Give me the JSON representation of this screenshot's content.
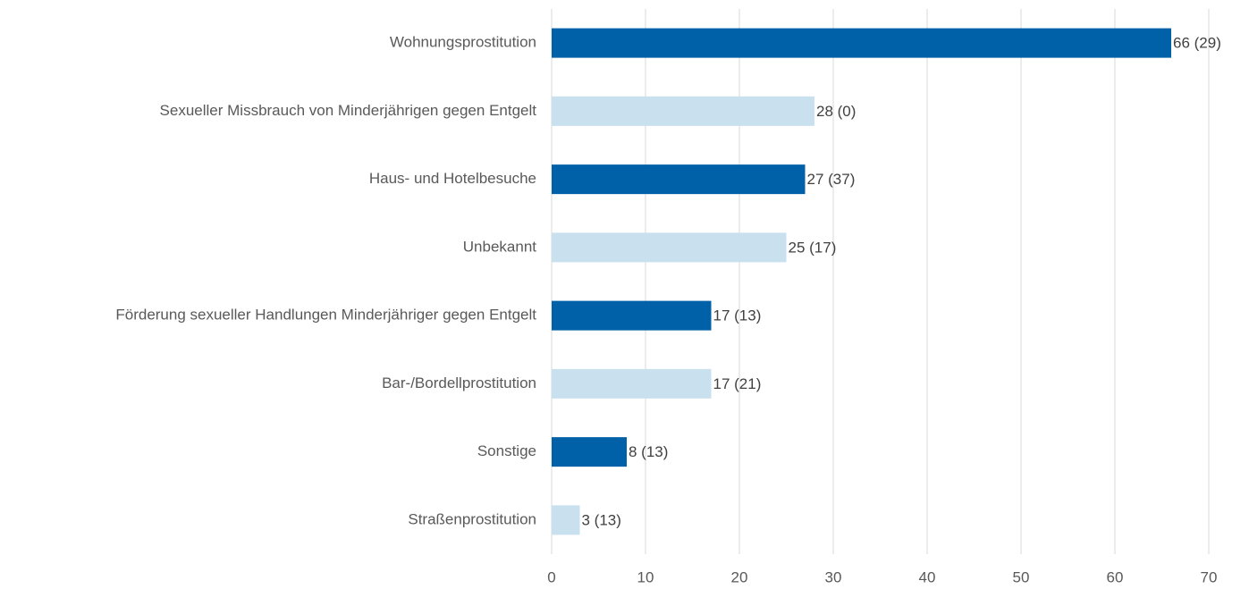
{
  "chart_data": {
    "type": "bar",
    "orientation": "horizontal",
    "categories": [
      "Wohnungsprostitution",
      "Sexueller Missbrauch von Minderjährigen gegen Entgelt",
      "Haus- und Hotelbesuche",
      "Unbekannt",
      "Förderung sexueller Handlungen Minderjähriger gegen Entgelt",
      "Bar-/Bordellprostitution",
      "Sonstige",
      "Straßenprostitution"
    ],
    "values": [
      66,
      28,
      27,
      25,
      17,
      17,
      8,
      3
    ],
    "value_labels": [
      "66 (29)",
      "28 (0)",
      "27 (37)",
      "25 (17)",
      "17 (13)",
      "17 (21)",
      "8 (13)",
      "3 (13)"
    ],
    "colors": [
      "#0060a8",
      "#c9e0ef",
      "#0060a8",
      "#c9e0ef",
      "#0060a8",
      "#c9e0ef",
      "#0060a8",
      "#c9e0ef"
    ],
    "xlim": [
      0,
      70
    ],
    "xticks": [
      0,
      10,
      20,
      30,
      40,
      50,
      60,
      70
    ],
    "grid": true
  }
}
